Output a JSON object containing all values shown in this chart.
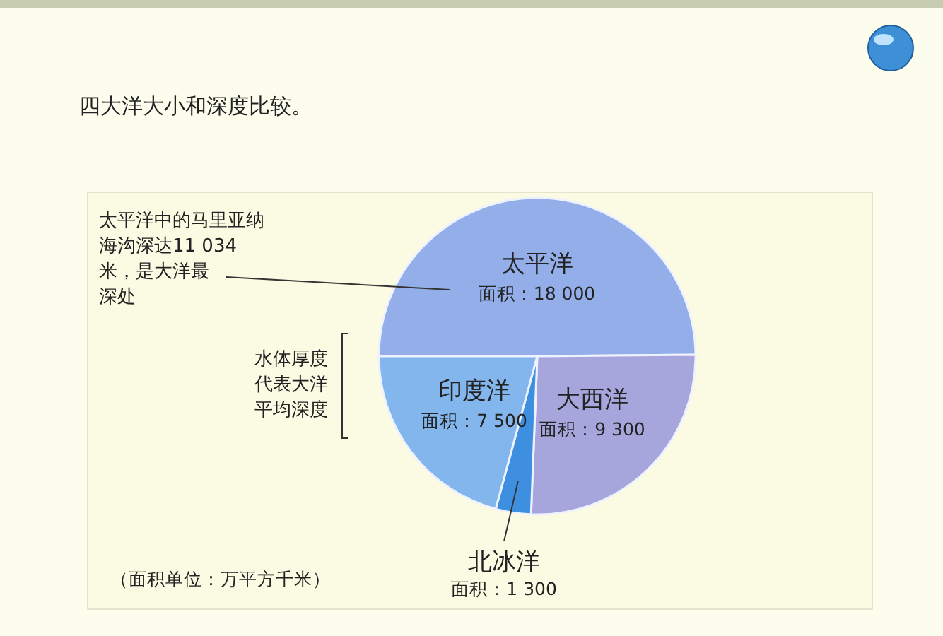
{
  "chart_data": {
    "type": "pie",
    "title": "四大洋大小和深度比较。",
    "categories": [
      "太平洋",
      "大西洋",
      "北冰洋",
      "印度洋"
    ],
    "values": [
      18000,
      9300,
      1300,
      7500
    ],
    "colors": [
      "#93aee8",
      "#a6a6dc",
      "#3f8fe0",
      "#82b6ec"
    ],
    "value_labels": [
      "面积：18 000",
      "面积：9 300",
      "面积：1 300",
      "面积：7 500"
    ],
    "annotations": [
      "太平洋中的马里亚纳海沟深达11 034米，是大洋最深处",
      "水体厚度代表大洋平均深度",
      "（面积单位：万平方千米）"
    ]
  }
}
